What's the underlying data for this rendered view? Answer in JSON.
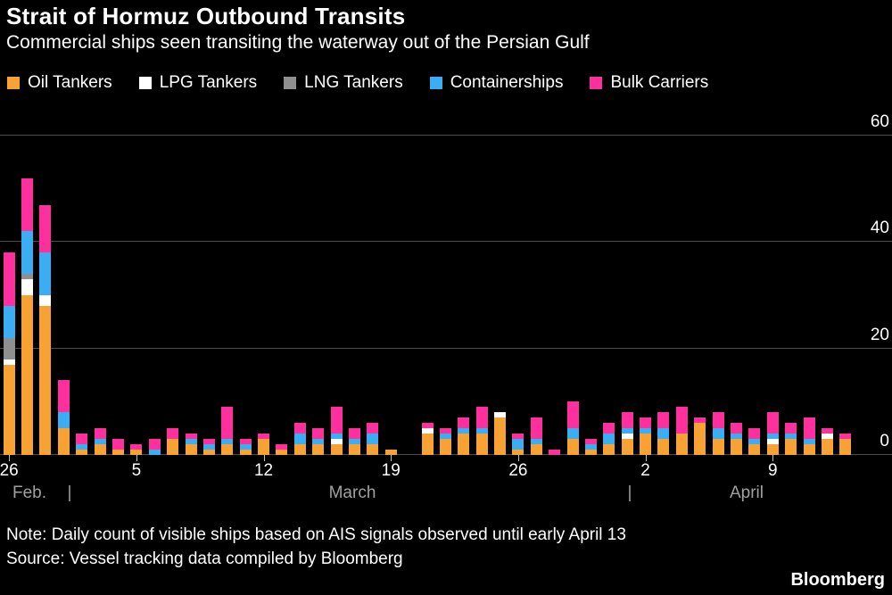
{
  "header": {
    "title": "Strait of Hormuz Outbound Transits",
    "subtitle": "Commercial ships seen transiting the waterway out of the Persian Gulf"
  },
  "legend": [
    {
      "label": "Oil Tankers",
      "color": "#F7A232"
    },
    {
      "label": "LPG Tankers",
      "color": "#FFFFFF"
    },
    {
      "label": "LNG Tankers",
      "color": "#8F8F8F"
    },
    {
      "label": "Containerships",
      "color": "#3BADF2"
    },
    {
      "label": "Bulk Carriers",
      "color": "#FF2F9E"
    }
  ],
  "chart_data": {
    "type": "bar",
    "stacked": true,
    "title": "Strait of Hormuz Outbound Transits",
    "xlabel": "",
    "ylabel": "",
    "ylim": [
      0,
      60
    ],
    "yticks": [
      0,
      20,
      40,
      60
    ],
    "grid": "horizontal",
    "legend_position": "top",
    "categories": [
      "Feb 26",
      "Feb 27",
      "Feb 28",
      "Mar 1",
      "Mar 2",
      "Mar 3",
      "Mar 4",
      "Mar 5",
      "Mar 6",
      "Mar 7",
      "Mar 8",
      "Mar 9",
      "Mar 10",
      "Mar 11",
      "Mar 12",
      "Mar 13",
      "Mar 14",
      "Mar 15",
      "Mar 16",
      "Mar 17",
      "Mar 18",
      "Mar 19",
      "Mar 20",
      "Mar 21",
      "Mar 22",
      "Mar 23",
      "Mar 24",
      "Mar 25",
      "Mar 26",
      "Mar 27",
      "Mar 28",
      "Mar 29",
      "Mar 30",
      "Mar 31",
      "Apr 1",
      "Apr 2",
      "Apr 3",
      "Apr 4",
      "Apr 5",
      "Apr 6",
      "Apr 7",
      "Apr 8",
      "Apr 9",
      "Apr 10",
      "Apr 11",
      "Apr 12",
      "Apr 13"
    ],
    "series": [
      {
        "name": "Oil Tankers",
        "color": "#F7A232",
        "values": [
          17,
          30,
          28,
          5,
          1,
          2,
          1,
          1,
          0,
          3,
          2,
          1,
          2,
          1,
          3,
          1,
          2,
          2,
          2,
          2,
          2,
          1,
          0,
          4,
          3,
          4,
          4,
          7,
          1,
          2,
          0,
          3,
          1,
          2,
          3,
          4,
          3,
          4,
          6,
          3,
          3,
          2,
          2,
          3,
          2,
          3,
          3
        ]
      },
      {
        "name": "LPG Tankers",
        "color": "#FFFFFF",
        "values": [
          1,
          3,
          2,
          0,
          0,
          0,
          0,
          0,
          0,
          0,
          0,
          0,
          0,
          0,
          0,
          0,
          0,
          0,
          1,
          0,
          0,
          0,
          0,
          1,
          0,
          0,
          0,
          1,
          0,
          0,
          0,
          0,
          0,
          0,
          1,
          0,
          0,
          0,
          0,
          0,
          0,
          0,
          1,
          0,
          0,
          1,
          0
        ]
      },
      {
        "name": "LNG Tankers",
        "color": "#8F8F8F",
        "values": [
          4,
          1,
          0,
          0,
          0,
          0,
          0,
          0,
          0,
          0,
          0,
          0,
          0,
          0,
          0,
          0,
          0,
          0,
          0,
          0,
          0,
          0,
          0,
          0,
          0,
          0,
          0,
          0,
          0,
          0,
          0,
          0,
          0,
          0,
          0,
          0,
          0,
          0,
          0,
          0,
          0,
          0,
          0,
          0,
          0,
          0,
          0
        ]
      },
      {
        "name": "Containerships",
        "color": "#3BADF2",
        "values": [
          6,
          8,
          8,
          3,
          1,
          1,
          0,
          0,
          1,
          0,
          1,
          1,
          1,
          1,
          0,
          0,
          2,
          1,
          1,
          1,
          2,
          0,
          0,
          0,
          1,
          1,
          1,
          0,
          2,
          1,
          0,
          2,
          1,
          2,
          1,
          1,
          2,
          0,
          0,
          2,
          1,
          1,
          1,
          1,
          1,
          0,
          0
        ]
      },
      {
        "name": "Bulk Carriers",
        "color": "#FF2F9E",
        "values": [
          10,
          10,
          9,
          6,
          2,
          2,
          2,
          1,
          2,
          2,
          1,
          1,
          6,
          1,
          1,
          1,
          2,
          2,
          5,
          2,
          2,
          0,
          0,
          1,
          1,
          2,
          4,
          0,
          1,
          4,
          1,
          5,
          1,
          2,
          3,
          2,
          3,
          5,
          1,
          3,
          2,
          2,
          4,
          2,
          4,
          1,
          1
        ]
      }
    ],
    "x_ticks": [
      {
        "index": 0,
        "label": "26"
      },
      {
        "index": 7,
        "label": "5"
      },
      {
        "index": 14,
        "label": "12"
      },
      {
        "index": 21,
        "label": "19"
      },
      {
        "index": 28,
        "label": "26"
      },
      {
        "index": 35,
        "label": "2"
      },
      {
        "index": 42,
        "label": "9"
      }
    ],
    "month_labels": [
      "Feb.",
      "|",
      "March",
      "|",
      "April"
    ]
  },
  "footer": {
    "note": "Note: Daily count of visible ships based on AIS signals observed until early April 13",
    "source": "Source: Vessel tracking data compiled by Bloomberg",
    "brand": "Bloomberg"
  }
}
